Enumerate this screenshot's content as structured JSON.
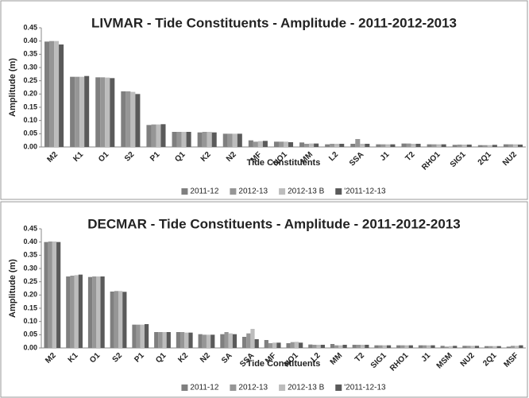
{
  "chart_data": [
    {
      "type": "bar",
      "title": "LIVMAR - Tide Constituents - Amplitude  - 2011-2012-2013",
      "x_label": "Tide Constituents",
      "y_label": "Amplitude (m)",
      "categories": [
        "M2",
        "K1",
        "O1",
        "S2",
        "P1",
        "Q1",
        "K2",
        "N2",
        "MF",
        "NO1",
        "MM",
        "L2",
        "SSA",
        "J1",
        "T2",
        "RHO1",
        "SIG1",
        "2Q1",
        "NU2"
      ],
      "series": [
        {
          "name": "2011-12",
          "color": "#7f7f7f",
          "values": [
            0.398,
            0.265,
            0.263,
            0.21,
            0.083,
            0.057,
            0.055,
            0.05,
            0.025,
            0.02,
            0.017,
            0.01,
            0.012,
            0.01,
            0.013,
            0.01,
            0.008,
            0.007,
            0.01
          ]
        },
        {
          "name": "2012-13",
          "color": "#969696",
          "values": [
            0.4,
            0.265,
            0.263,
            0.21,
            0.085,
            0.057,
            0.057,
            0.05,
            0.02,
            0.02,
            0.012,
            0.012,
            0.03,
            0.01,
            0.013,
            0.01,
            0.009,
            0.007,
            0.01
          ]
        },
        {
          "name": "2012-13 B",
          "color": "#bdbdbd",
          "values": [
            0.4,
            0.265,
            0.262,
            0.208,
            0.085,
            0.057,
            0.057,
            0.05,
            0.022,
            0.02,
            0.013,
            0.012,
            0.012,
            0.01,
            0.012,
            0.01,
            0.009,
            0.007,
            0.01
          ]
        },
        {
          "name": "'2011-12-13",
          "color": "#5a5a5a",
          "values": [
            0.387,
            0.268,
            0.26,
            0.2,
            0.086,
            0.057,
            0.055,
            0.05,
            0.023,
            0.018,
            0.013,
            0.012,
            0.012,
            0.01,
            0.012,
            0.01,
            0.009,
            0.008,
            0.009
          ]
        }
      ],
      "ylim": [
        0,
        0.45
      ],
      "yticks": [
        {
          "value": 0,
          "label": "0.00"
        },
        {
          "value": 0.05,
          "label": "0.05"
        },
        {
          "value": 0.1,
          "label": "0.10"
        },
        {
          "value": 0.15,
          "label": "0.15"
        },
        {
          "value": 0.2,
          "label": "0.20"
        },
        {
          "value": 0.25,
          "label": "0.25"
        },
        {
          "value": 0.3,
          "label": "0.30"
        },
        {
          "value": 0.35,
          "label": "0.35"
        },
        {
          "value": 0.4,
          "label": "0.40"
        },
        {
          "value": 0.45,
          "label": "0.45"
        }
      ],
      "grid": false,
      "legend": "bottom"
    },
    {
      "type": "bar",
      "title": "DECMAR - Tide Constituents - Amplitude -  2011-2012-2013",
      "x_label": "Tide Constituents",
      "y_label": "Amplitude (m)",
      "categories": [
        "M2",
        "K1",
        "O1",
        "S2",
        "P1",
        "Q1",
        "K2",
        "N2",
        "SA",
        "SSA",
        "MF",
        "NO1",
        "L2",
        "MM",
        "T2",
        "SIG1",
        "RHO1",
        "J1",
        "MSM",
        "NU2",
        "2Q1",
        "MSF"
      ],
      "series": [
        {
          "name": "2011-12",
          "color": "#7f7f7f",
          "values": [
            0.4,
            0.27,
            0.268,
            0.213,
            0.088,
            0.06,
            0.06,
            0.052,
            0.052,
            0.042,
            0.03,
            0.018,
            0.013,
            0.015,
            0.012,
            0.01,
            0.01,
            0.01,
            0.008,
            0.008,
            0.007,
            0.005
          ]
        },
        {
          "name": "2012-13",
          "color": "#969696",
          "values": [
            0.402,
            0.273,
            0.27,
            0.215,
            0.088,
            0.06,
            0.06,
            0.05,
            0.06,
            0.055,
            0.018,
            0.022,
            0.012,
            0.01,
            0.012,
            0.01,
            0.01,
            0.01,
            0.005,
            0.008,
            0.007,
            0.008
          ]
        },
        {
          "name": "2012-13 B",
          "color": "#bdbdbd",
          "values": [
            0.402,
            0.275,
            0.27,
            0.215,
            0.088,
            0.06,
            0.058,
            0.05,
            0.055,
            0.072,
            0.02,
            0.023,
            0.012,
            0.01,
            0.012,
            0.01,
            0.01,
            0.01,
            0.007,
            0.008,
            0.007,
            0.008
          ]
        },
        {
          "name": "'2011-12-13",
          "color": "#5a5a5a",
          "values": [
            0.4,
            0.277,
            0.27,
            0.212,
            0.09,
            0.06,
            0.058,
            0.05,
            0.052,
            0.033,
            0.02,
            0.02,
            0.012,
            0.012,
            0.012,
            0.01,
            0.01,
            0.01,
            0.008,
            0.008,
            0.007,
            0.01
          ]
        }
      ],
      "ylim": [
        0,
        0.45
      ],
      "yticks": [
        {
          "value": 0,
          "label": "0.00"
        },
        {
          "value": 0.05,
          "label": "0.05"
        },
        {
          "value": 0.1,
          "label": "0.10"
        },
        {
          "value": 0.15,
          "label": "0.15"
        },
        {
          "value": 0.2,
          "label": "0.20"
        },
        {
          "value": 0.25,
          "label": "0.25"
        },
        {
          "value": 0.3,
          "label": "0.30"
        },
        {
          "value": 0.35,
          "label": "0.35"
        },
        {
          "value": 0.4,
          "label": "0.40"
        },
        {
          "value": 0.45,
          "label": "0.45"
        }
      ],
      "grid": false,
      "legend": "bottom"
    }
  ]
}
